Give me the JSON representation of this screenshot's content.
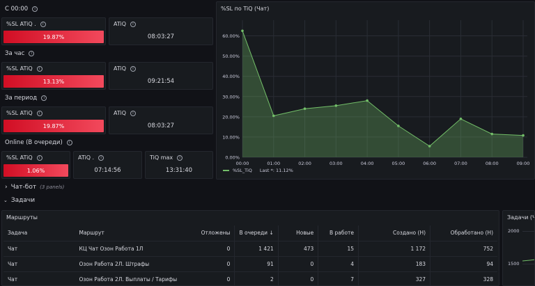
{
  "row_labels": {
    "since_midnight": "С 00:00",
    "per_hour": "За час",
    "per_period": "За период",
    "online": "Online (В очереди)"
  },
  "stats": {
    "r1_sl_title": "%SL ATiQ .",
    "r1_sl_value": "19.87%",
    "r1_atiq_title": "ATiQ",
    "r1_atiq_value": "08:03:27",
    "r2_sl_title": "%SL ATiQ",
    "r2_sl_value": "13.13%",
    "r2_atiq_title": "ATiQ",
    "r2_atiq_value": "09:21:54",
    "r3_sl_title": "%SL ATiQ",
    "r3_sl_value": "19.87%",
    "r3_atiq_title": "ATiQ",
    "r3_atiq_value": "08:03:27",
    "r4_sl_title": "%SL ATiQ",
    "r4_sl_value": "1.06%",
    "r4_atiq_title": "ATiQ .",
    "r4_atiq_value": "07:14:56",
    "r4_tiqmax_title": "TiQ max",
    "r4_tiqmax_value": "13:31:40"
  },
  "colors": {
    "stat_red": "#f2495c",
    "series_green": "#73bf69",
    "background": "#111217"
  },
  "chart_panel": {
    "title": "%SL по TiQ (Чат)",
    "legend_label": "%SL_TiQ",
    "legend_last": "Last *: 11.12%"
  },
  "chart_data": {
    "type": "area",
    "title": "%SL по TiQ (Чат)",
    "x": [
      "00:00",
      "01:00",
      "02:00",
      "03:00",
      "04:00",
      "05:00",
      "06:00",
      "07:00",
      "08:00",
      "09:00"
    ],
    "ylim": [
      0,
      65
    ],
    "y_ticks": [
      "0.00%",
      "10.00%",
      "20.00%",
      "30.00%",
      "40.00%",
      "50.00%",
      "60.00%"
    ],
    "grid": true,
    "legend": "bottom-left",
    "series": [
      {
        "name": "%SL_TiQ",
        "values": [
          62.5,
          20.5,
          24,
          25.5,
          28,
          15.5,
          5.5,
          19,
          11.5,
          10.8
        ]
      }
    ]
  },
  "sections": {
    "chatbot": "Чат-бот",
    "chatbot_sub": "(3 panels)",
    "tasks": "Задачи"
  },
  "routes_panel": {
    "title": "Маршруты",
    "headers": [
      "Задача",
      "Маршрут",
      "Отложены",
      "В очереди",
      "Новые",
      "В работе",
      "Создано (Н)",
      "Обработано (Н)"
    ],
    "sort_indicator": "↓",
    "rows": [
      [
        "Чат",
        "КЦ Чат Озон Работа 1Л",
        "0",
        "1 421",
        "473",
        "15",
        "1 172",
        "752"
      ],
      [
        "Чат",
        "Озон Работа 2Л. Штрафы",
        "0",
        "91",
        "0",
        "4",
        "183",
        "94"
      ],
      [
        "Чат",
        "Озон Работа 2Л. Выплаты / Тарифы",
        "0",
        "2",
        "0",
        "7",
        "327",
        "328"
      ]
    ]
  },
  "side_panel": {
    "title": "Задачи (Ч",
    "y_ticks": [
      "2000",
      "1500"
    ]
  }
}
